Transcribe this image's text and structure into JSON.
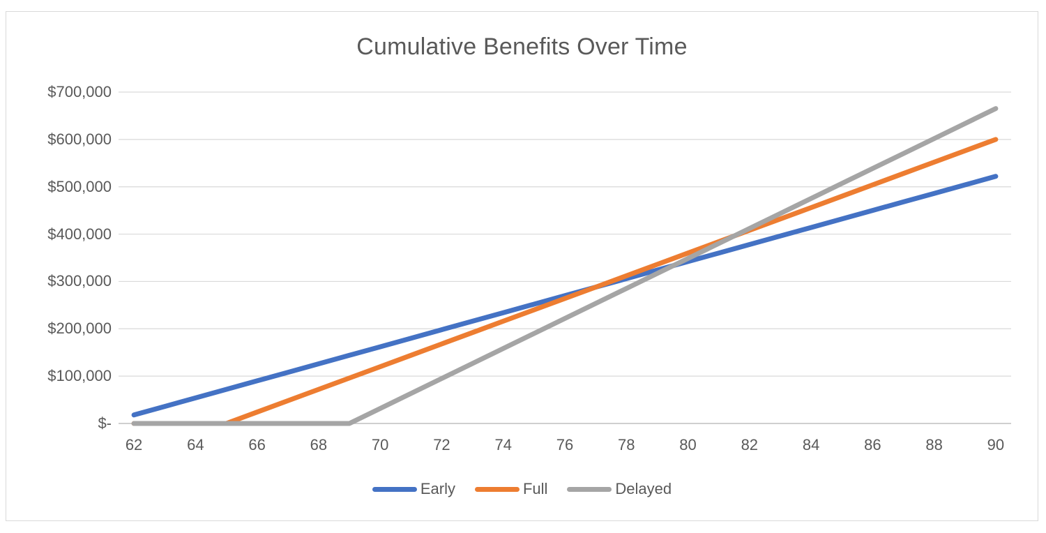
{
  "chart_data": {
    "type": "line",
    "title": "Cumulative Benefits Over Time",
    "x": [
      62,
      63,
      64,
      65,
      66,
      67,
      68,
      69,
      70,
      71,
      72,
      73,
      74,
      75,
      76,
      77,
      78,
      79,
      80,
      81,
      82,
      83,
      84,
      85,
      86,
      87,
      88,
      89,
      90
    ],
    "x_tick_step": 2,
    "x_tick_labels": [
      "62",
      "64",
      "66",
      "68",
      "70",
      "72",
      "74",
      "76",
      "78",
      "80",
      "82",
      "84",
      "86",
      "88",
      "90"
    ],
    "y_tick_values": [
      0,
      100000,
      200000,
      300000,
      400000,
      500000,
      600000,
      700000
    ],
    "y_tick_labels": [
      "$-",
      "$100,000",
      "$200,000",
      "$300,000",
      "$400,000",
      "$500,000",
      "$600,000",
      "$700,000"
    ],
    "ylim": [
      0,
      700000
    ],
    "grid": "horizontal",
    "grid_color": "#d9d9d9",
    "axis_color": "#bfbfbf",
    "text_color": "#595959",
    "legend_position": "bottom",
    "series": [
      {
        "name": "Early",
        "color": "#4472c4",
        "values": [
          18000,
          36000,
          54000,
          72000,
          90000,
          108000,
          126000,
          144000,
          162000,
          180000,
          198000,
          216000,
          234000,
          252000,
          270000,
          288000,
          306000,
          324000,
          342000,
          360000,
          378000,
          396000,
          414000,
          432000,
          450000,
          468000,
          486000,
          504000,
          522000
        ]
      },
      {
        "name": "Full",
        "color": "#ed7d31",
        "values": [
          0,
          0,
          0,
          0,
          24000,
          48000,
          72000,
          96000,
          120000,
          144000,
          168000,
          192000,
          216000,
          240000,
          264000,
          288000,
          312000,
          336000,
          360000,
          384000,
          408000,
          432000,
          456000,
          480000,
          504000,
          528000,
          552000,
          576000,
          600000
        ]
      },
      {
        "name": "Delayed",
        "color": "#a5a5a5",
        "values": [
          0,
          0,
          0,
          0,
          0,
          0,
          0,
          0,
          31680,
          63360,
          95040,
          126720,
          158400,
          190080,
          221760,
          253440,
          285120,
          316800,
          348480,
          380160,
          411840,
          443520,
          475200,
          506880,
          538560,
          570240,
          601920,
          633600,
          665280
        ]
      }
    ]
  }
}
